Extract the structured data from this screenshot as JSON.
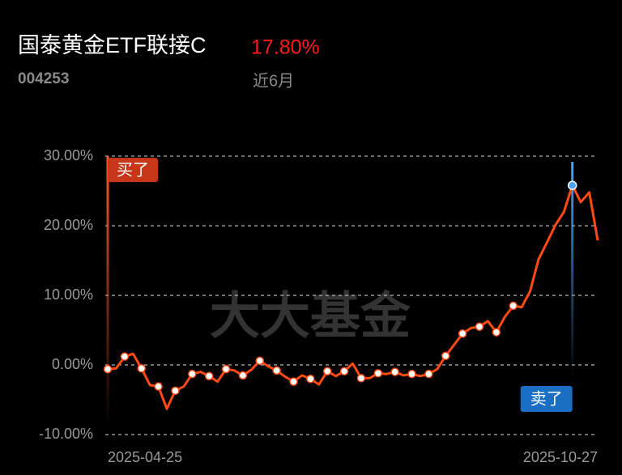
{
  "header": {
    "title": "国泰黄金ETF联接C",
    "return": "17.80%",
    "code": "004253",
    "period": "近6月"
  },
  "chart_data": {
    "type": "line",
    "watermark": "大大基金",
    "buy_label": "买了",
    "sell_label": "卖了",
    "categories": [
      "2025-04-25",
      null,
      null,
      null,
      null,
      null,
      null,
      null,
      null,
      null,
      null,
      null,
      null,
      null,
      null,
      null,
      null,
      null,
      null,
      null,
      null,
      null,
      null,
      null,
      null,
      null,
      null,
      null,
      null,
      null,
      null,
      null,
      null,
      null,
      null,
      null,
      null,
      null,
      null,
      null,
      null,
      null,
      null,
      null,
      null,
      null,
      null,
      null,
      null,
      null,
      null,
      null,
      null,
      null,
      null,
      null,
      null,
      null,
      "2025-10-27"
    ],
    "series": [
      {
        "name": "国泰黄金ETF联接C",
        "color": "#ff4a12",
        "values": [
          -0.6,
          -0.5,
          1.2,
          1.6,
          -0.5,
          -2.9,
          -3.1,
          -6.3,
          -3.7,
          -3.1,
          -1.3,
          -1.0,
          -1.6,
          -2.4,
          -0.6,
          -0.8,
          -1.5,
          -0.7,
          0.6,
          -0.2,
          -0.8,
          -1.7,
          -2.4,
          -1.5,
          -2.0,
          -2.8,
          -0.9,
          -1.6,
          -0.9,
          0.2,
          -1.9,
          -1.9,
          -1.2,
          -1.3,
          -1.0,
          -1.5,
          -1.3,
          -1.6,
          -1.3,
          -0.6,
          1.3,
          2.9,
          4.5,
          5.3,
          5.5,
          6.3,
          4.7,
          6.9,
          8.5,
          8.3,
          10.6,
          15.2,
          17.6,
          20.1,
          22.0,
          25.8,
          23.4,
          24.8,
          17.9
        ]
      }
    ],
    "ylim": [
      -10,
      30
    ],
    "yticks": [
      {
        "value": 30,
        "label": "30.00%"
      },
      {
        "value": 20,
        "label": "20.00%"
      },
      {
        "value": 10,
        "label": "10.00%"
      },
      {
        "value": 0,
        "label": "0.00%"
      },
      {
        "value": -10,
        "label": "-10.00%"
      }
    ],
    "grid": true
  }
}
